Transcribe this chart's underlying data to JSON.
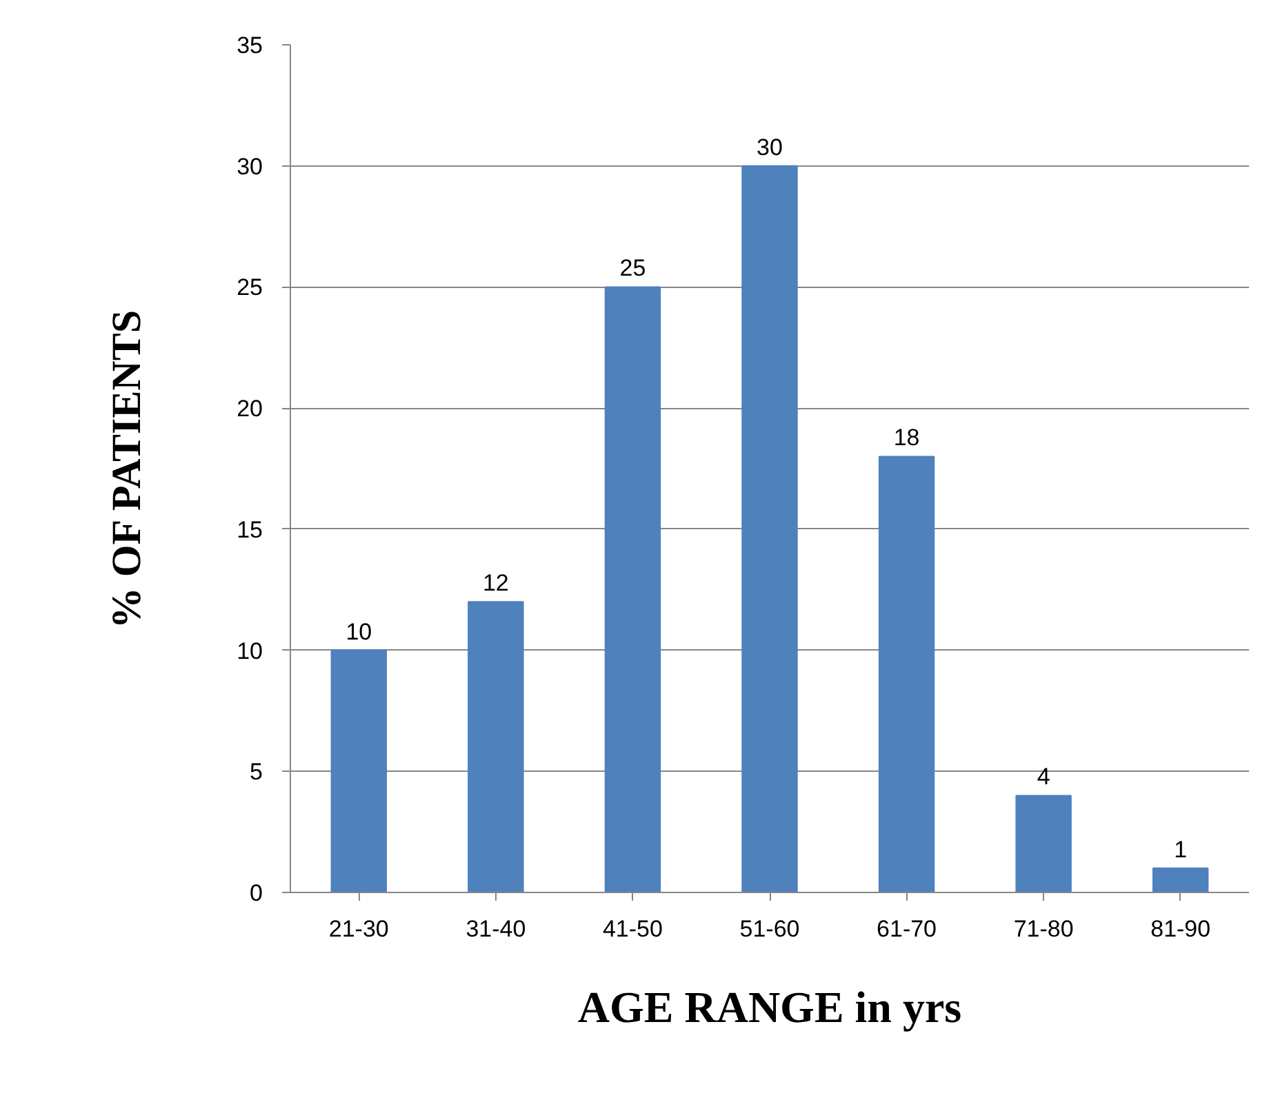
{
  "chart_data": {
    "type": "bar",
    "xlabel": "AGE RANGE in yrs",
    "ylabel": "% OF PATIENTS",
    "categories": [
      "21-30",
      "31-40",
      "41-50",
      "51-60",
      "61-70",
      "71-80",
      "81-90"
    ],
    "values": [
      10,
      12,
      25,
      30,
      18,
      4,
      1
    ],
    "color": "#4f81bd",
    "ylim": [
      0,
      35
    ],
    "yticks": [
      0,
      5,
      10,
      15,
      20,
      25,
      30,
      35
    ],
    "grid": "y",
    "data_labels": true
  }
}
